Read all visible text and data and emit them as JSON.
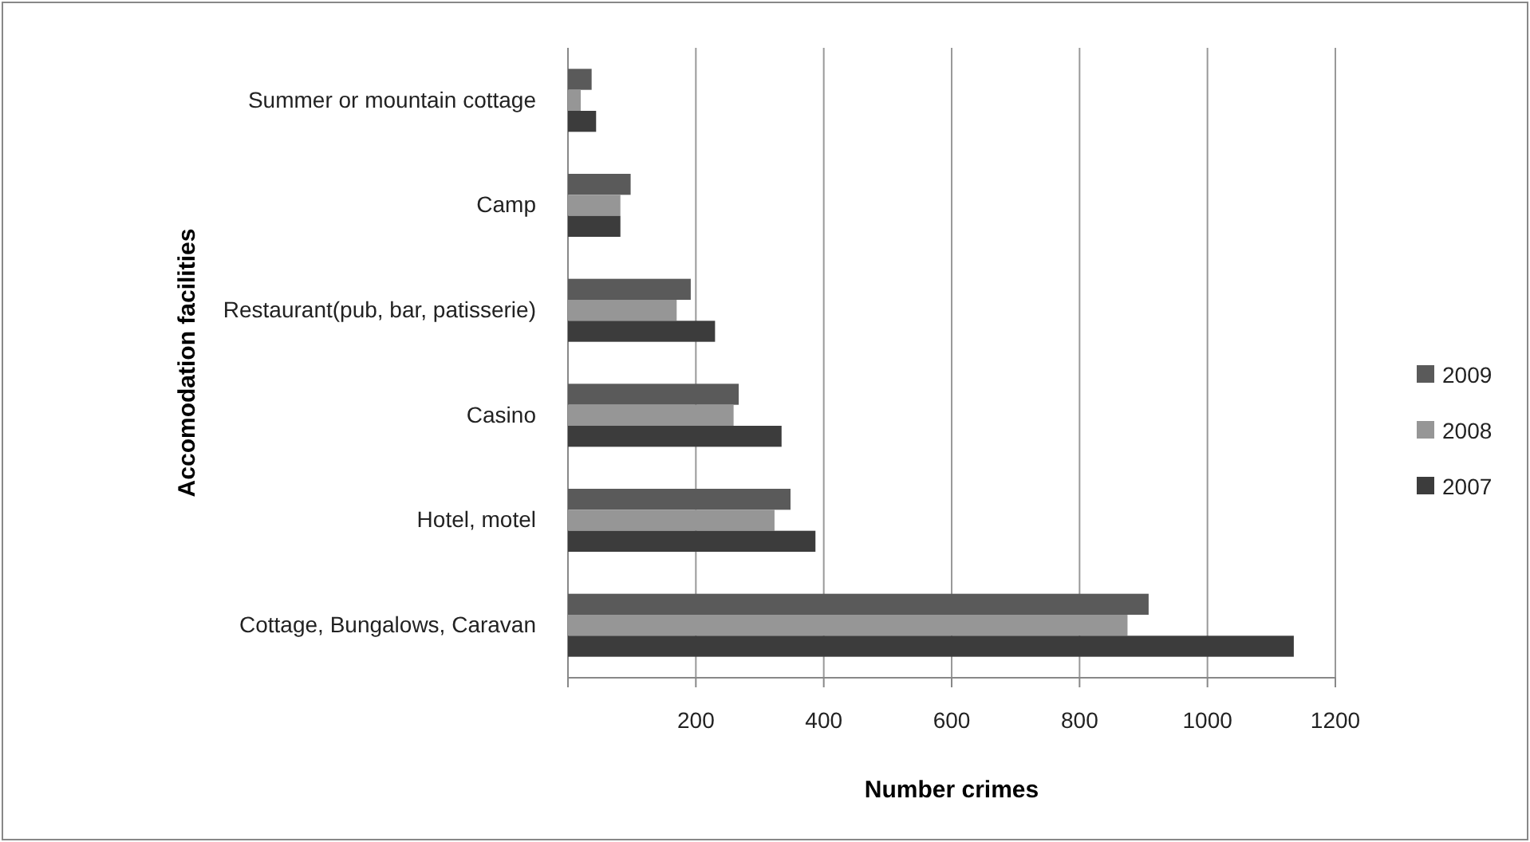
{
  "chart_data": {
    "type": "bar",
    "orientation": "horizontal",
    "xlabel": "Number crimes",
    "ylabel": "Accomodation facilities",
    "categories": [
      "Summer or mountain cottage",
      "Camp",
      "Restaurant(pub, bar, patisserie)",
      "Casino",
      "Hotel, motel",
      "Cottage, Bungalows, Caravan"
    ],
    "series": [
      {
        "name": "2009",
        "color": "#5a5a5a",
        "values": [
          37,
          98,
          192,
          267,
          348,
          908
        ]
      },
      {
        "name": "2008",
        "color": "#969696",
        "values": [
          20,
          82,
          170,
          259,
          323,
          875
        ]
      },
      {
        "name": "2007",
        "color": "#3c3c3c",
        "values": [
          44,
          82,
          230,
          334,
          387,
          1135
        ]
      }
    ],
    "xlim": [
      0,
      1200
    ],
    "xticks": [
      {
        "value": 0,
        "label": null
      },
      200,
      400,
      600,
      800,
      1000,
      1200
    ],
    "grid": "x",
    "legend": "right"
  }
}
